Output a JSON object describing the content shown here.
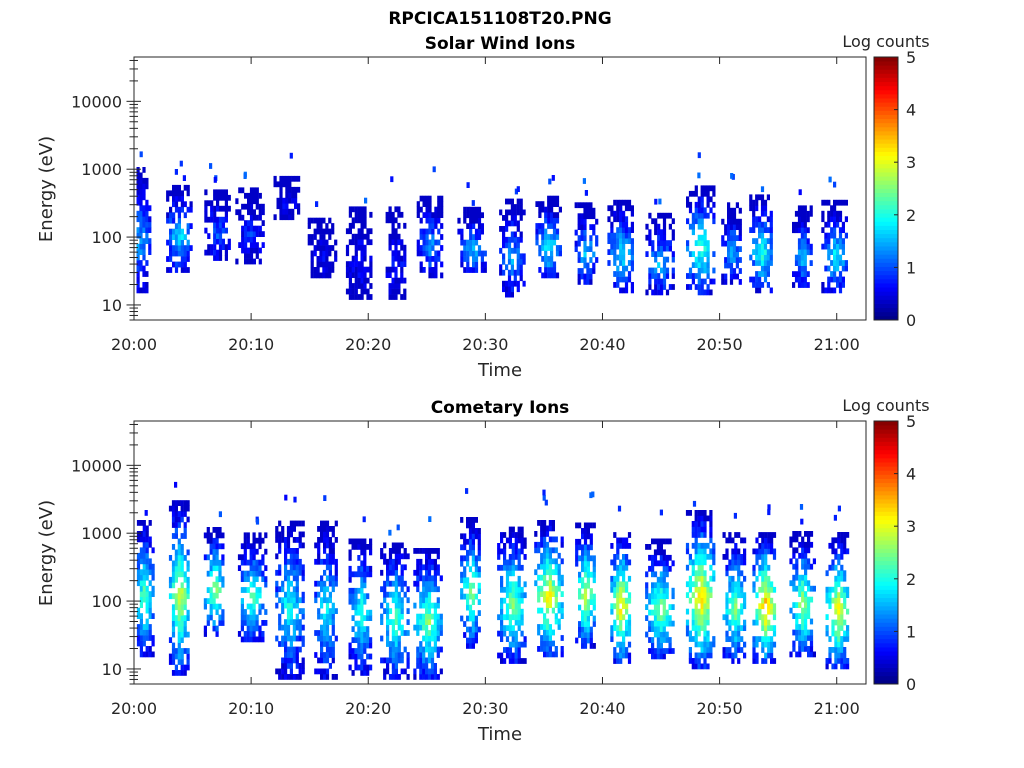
{
  "figure_title": "RPCICA151108T20.PNG",
  "colors": {
    "colormap": [
      "#00007f",
      "#0000ff",
      "#007fff",
      "#00ffff",
      "#7fff7f",
      "#ffff00",
      "#ff7f00",
      "#ff0000",
      "#7f0000"
    ],
    "axis": "#262626",
    "background": "#ffffff"
  },
  "chart_data": [
    {
      "type": "heatmap",
      "title": "Solar Wind Ions",
      "xlabel": "Time",
      "ylabel": "Energy (eV)",
      "x_ticks": [
        "20:00",
        "20:10",
        "20:20",
        "20:30",
        "20:40",
        "20:50",
        "21:00"
      ],
      "x_range_minutes": [
        0,
        62.5
      ],
      "y_ticks": [
        "10",
        "100",
        "1000",
        "10000"
      ],
      "y_scale": "log",
      "y_range": [
        6,
        45000
      ],
      "colorbar": {
        "label": "Log counts",
        "range": [
          0,
          5
        ],
        "ticks": [
          "0",
          "1",
          "2",
          "3",
          "4",
          "5"
        ]
      },
      "bursts": [
        {
          "t": 0.3,
          "e_lo": 15,
          "e_hi": 900,
          "peak": 1.5
        },
        {
          "t": 3.8,
          "e_lo": 30,
          "e_hi": 550,
          "peak": 1.8
        },
        {
          "t": 7.0,
          "e_lo": 45,
          "e_hi": 480,
          "peak": 1.1
        },
        {
          "t": 9.8,
          "e_lo": 40,
          "e_hi": 500,
          "peak": 0.9
        },
        {
          "t": 13.0,
          "e_lo": 180,
          "e_hi": 700,
          "peak": 0.6
        },
        {
          "t": 16.0,
          "e_lo": 25,
          "e_hi": 180,
          "peak": 0.6
        },
        {
          "t": 19.2,
          "e_lo": 12,
          "e_hi": 260,
          "peak": 0.7
        },
        {
          "t": 22.3,
          "e_lo": 12,
          "e_hi": 250,
          "peak": 0.8
        },
        {
          "t": 25.2,
          "e_lo": 25,
          "e_hi": 380,
          "peak": 1.4
        },
        {
          "t": 28.8,
          "e_lo": 30,
          "e_hi": 240,
          "peak": 1.6
        },
        {
          "t": 32.2,
          "e_lo": 13,
          "e_hi": 320,
          "peak": 1.5
        },
        {
          "t": 35.3,
          "e_lo": 25,
          "e_hi": 350,
          "peak": 2.0
        },
        {
          "t": 38.5,
          "e_lo": 20,
          "e_hi": 280,
          "peak": 1.7
        },
        {
          "t": 41.5,
          "e_lo": 15,
          "e_hi": 330,
          "peak": 1.9
        },
        {
          "t": 44.8,
          "e_lo": 14,
          "e_hi": 200,
          "peak": 1.6
        },
        {
          "t": 48.3,
          "e_lo": 14,
          "e_hi": 550,
          "peak": 2.3
        },
        {
          "t": 51.0,
          "e_lo": 20,
          "e_hi": 300,
          "peak": 1.5
        },
        {
          "t": 53.5,
          "e_lo": 15,
          "e_hi": 380,
          "peak": 2.1
        },
        {
          "t": 57.0,
          "e_lo": 18,
          "e_hi": 250,
          "peak": 1.7
        },
        {
          "t": 59.8,
          "e_lo": 15,
          "e_hi": 300,
          "peak": 1.9
        }
      ]
    },
    {
      "type": "heatmap",
      "title": "Cometary Ions",
      "xlabel": "Time",
      "ylabel": "Energy (eV)",
      "x_ticks": [
        "20:00",
        "20:10",
        "20:20",
        "20:30",
        "20:40",
        "20:50",
        "21:00"
      ],
      "x_range_minutes": [
        0,
        62.5
      ],
      "y_ticks": [
        "10",
        "100",
        "1000",
        "10000"
      ],
      "y_scale": "log",
      "y_range": [
        6,
        45000
      ],
      "colorbar": {
        "label": "Log counts",
        "range": [
          0,
          5
        ],
        "ticks": [
          "0",
          "1",
          "2",
          "3",
          "4",
          "5"
        ]
      },
      "bursts": [
        {
          "t": 0.8,
          "e_lo": 15,
          "e_hi": 1500,
          "peak": 2.5
        },
        {
          "t": 3.8,
          "e_lo": 8,
          "e_hi": 2800,
          "peak": 3.1
        },
        {
          "t": 6.8,
          "e_lo": 30,
          "e_hi": 1200,
          "peak": 2.7
        },
        {
          "t": 10.0,
          "e_lo": 25,
          "e_hi": 900,
          "peak": 2.3
        },
        {
          "t": 13.2,
          "e_lo": 7,
          "e_hi": 1500,
          "peak": 2.1
        },
        {
          "t": 16.3,
          "e_lo": 7,
          "e_hi": 1300,
          "peak": 2.0
        },
        {
          "t": 19.3,
          "e_lo": 8,
          "e_hi": 800,
          "peak": 2.2
        },
        {
          "t": 22.2,
          "e_lo": 7,
          "e_hi": 700,
          "peak": 2.3
        },
        {
          "t": 25.0,
          "e_lo": 7,
          "e_hi": 600,
          "peak": 2.6
        },
        {
          "t": 28.7,
          "e_lo": 20,
          "e_hi": 1500,
          "peak": 2.7
        },
        {
          "t": 32.2,
          "e_lo": 12,
          "e_hi": 1200,
          "peak": 2.6
        },
        {
          "t": 35.3,
          "e_lo": 15,
          "e_hi": 1500,
          "peak": 3.3
        },
        {
          "t": 38.5,
          "e_lo": 20,
          "e_hi": 1300,
          "peak": 3.0
        },
        {
          "t": 41.5,
          "e_lo": 12,
          "e_hi": 1000,
          "peak": 3.4
        },
        {
          "t": 44.8,
          "e_lo": 14,
          "e_hi": 700,
          "peak": 2.7
        },
        {
          "t": 48.3,
          "e_lo": 10,
          "e_hi": 2000,
          "peak": 3.5
        },
        {
          "t": 51.2,
          "e_lo": 12,
          "e_hi": 900,
          "peak": 2.6
        },
        {
          "t": 53.8,
          "e_lo": 12,
          "e_hi": 1000,
          "peak": 3.6
        },
        {
          "t": 57.0,
          "e_lo": 15,
          "e_hi": 900,
          "peak": 2.8
        },
        {
          "t": 60.0,
          "e_lo": 10,
          "e_hi": 900,
          "peak": 3.3
        }
      ]
    }
  ]
}
